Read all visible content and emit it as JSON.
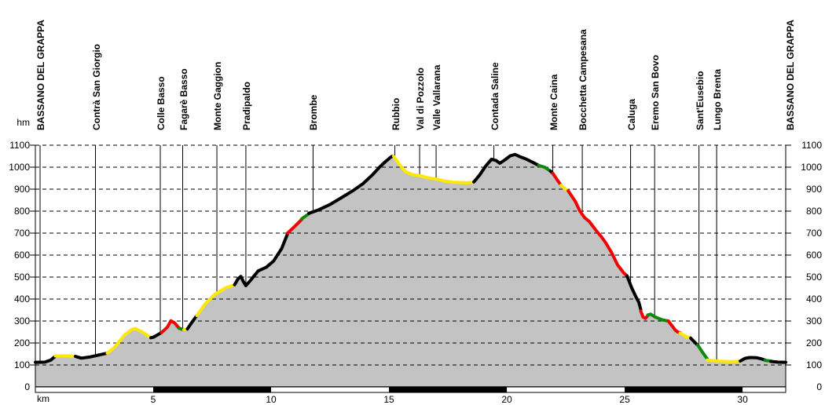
{
  "chart_data": {
    "type": "area",
    "title": "",
    "xlabel": "km",
    "ylabel": "hm",
    "x_ticks": [
      5,
      10,
      15,
      20,
      25,
      30
    ],
    "y_ticks": [
      0,
      100,
      200,
      300,
      400,
      500,
      600,
      700,
      800,
      900,
      1000,
      1100
    ],
    "xlim": [
      0,
      31.83
    ],
    "ylim": [
      0,
      1100
    ],
    "grid": "horizontal-dashed",
    "legend": "none",
    "colors": {
      "background": "#ffffff",
      "fill": "#c3c3c3",
      "outline": "#000000",
      "gradient_yellow": "#ffe800",
      "gradient_red": "#f40000",
      "gradient_green": "#0a8a0a"
    },
    "profile_segments": [
      {
        "color": "black",
        "points": [
          [
            0,
            112
          ],
          [
            0.4,
            113
          ],
          [
            0.65,
            122
          ],
          [
            0.85,
            140
          ]
        ]
      },
      {
        "color": "yellow",
        "points": [
          [
            0.85,
            141
          ],
          [
            1.3,
            142
          ],
          [
            1.7,
            139
          ]
        ]
      },
      {
        "color": "black",
        "points": [
          [
            1.7,
            139
          ],
          [
            1.95,
            131
          ],
          [
            2.3,
            136
          ],
          [
            3.05,
            154
          ]
        ]
      },
      {
        "color": "yellow",
        "points": [
          [
            3.05,
            154
          ],
          [
            3.35,
            180
          ],
          [
            3.8,
            238
          ],
          [
            4.1,
            262
          ],
          [
            4.25,
            266
          ],
          [
            4.5,
            252
          ],
          [
            4.9,
            224
          ]
        ]
      },
      {
        "color": "black",
        "points": [
          [
            4.9,
            224
          ],
          [
            5.0,
            226
          ],
          [
            5.35,
            247
          ]
        ]
      },
      {
        "color": "red",
        "points": [
          [
            5.35,
            247
          ],
          [
            5.6,
            272
          ],
          [
            5.75,
            301
          ],
          [
            5.9,
            292
          ],
          [
            6.1,
            267
          ]
        ]
      },
      {
        "color": "green",
        "points": [
          [
            6.1,
            267
          ],
          [
            6.3,
            260
          ]
        ]
      },
      {
        "color": "yellow",
        "points": [
          [
            6.3,
            260
          ],
          [
            6.45,
            264
          ]
        ]
      },
      {
        "color": "black",
        "points": [
          [
            6.45,
            264
          ],
          [
            6.6,
            288
          ],
          [
            6.85,
            325
          ]
        ]
      },
      {
        "color": "yellow",
        "points": [
          [
            6.85,
            325
          ],
          [
            7.2,
            378
          ],
          [
            7.6,
            420
          ],
          [
            8.1,
            452
          ],
          [
            8.45,
            465
          ]
        ]
      },
      {
        "color": "black",
        "points": [
          [
            8.45,
            465
          ],
          [
            8.6,
            492
          ],
          [
            8.72,
            503
          ],
          [
            8.82,
            480
          ],
          [
            8.93,
            461
          ],
          [
            9.15,
            488
          ],
          [
            9.45,
            528
          ],
          [
            9.8,
            545
          ],
          [
            10.1,
            572
          ],
          [
            10.45,
            630
          ],
          [
            10.7,
            697
          ]
        ]
      },
      {
        "color": "red",
        "points": [
          [
            10.7,
            700
          ],
          [
            11.0,
            730
          ],
          [
            11.3,
            762
          ]
        ]
      },
      {
        "color": "green",
        "points": [
          [
            11.3,
            765
          ],
          [
            11.6,
            788
          ]
        ]
      },
      {
        "color": "black",
        "points": [
          [
            11.6,
            790
          ],
          [
            12.0,
            805
          ],
          [
            12.5,
            830
          ],
          [
            13.0,
            862
          ],
          [
            13.5,
            895
          ],
          [
            13.9,
            925
          ],
          [
            14.3,
            965
          ],
          [
            14.6,
            1000
          ],
          [
            14.85,
            1025
          ],
          [
            15.1,
            1048
          ],
          [
            15.2,
            1050
          ]
        ]
      },
      {
        "color": "yellow",
        "points": [
          [
            15.2,
            1050
          ],
          [
            15.45,
            1012
          ],
          [
            15.7,
            980
          ],
          [
            16.0,
            966
          ],
          [
            16.3,
            962
          ],
          [
            16.6,
            953
          ],
          [
            17.0,
            946
          ],
          [
            17.4,
            936
          ],
          [
            17.8,
            931
          ],
          [
            18.3,
            929
          ],
          [
            18.6,
            932
          ]
        ]
      },
      {
        "color": "black",
        "points": [
          [
            18.6,
            933
          ],
          [
            18.85,
            965
          ],
          [
            19.1,
            1005
          ],
          [
            19.35,
            1036
          ],
          [
            19.55,
            1030
          ],
          [
            19.7,
            1018
          ],
          [
            19.9,
            1032
          ],
          [
            20.15,
            1052
          ],
          [
            20.35,
            1058
          ],
          [
            20.55,
            1048
          ],
          [
            20.8,
            1038
          ],
          [
            21.1,
            1022
          ],
          [
            21.35,
            1008
          ]
        ]
      },
      {
        "color": "green",
        "points": [
          [
            21.35,
            1008
          ],
          [
            21.6,
            1000
          ],
          [
            21.85,
            982
          ]
        ]
      },
      {
        "color": "black",
        "points": [
          [
            21.85,
            982
          ],
          [
            21.95,
            972
          ]
        ]
      },
      {
        "color": "red",
        "points": [
          [
            21.95,
            972
          ],
          [
            22.15,
            940
          ],
          [
            22.3,
            918
          ]
        ]
      },
      {
        "color": "yellow",
        "points": [
          [
            22.3,
            918
          ],
          [
            22.5,
            900
          ],
          [
            22.6,
            893
          ]
        ]
      },
      {
        "color": "red",
        "points": [
          [
            22.6,
            893
          ],
          [
            22.9,
            845
          ],
          [
            23.1,
            800
          ],
          [
            23.3,
            770
          ],
          [
            23.5,
            752
          ],
          [
            23.8,
            710
          ],
          [
            24.0,
            685
          ],
          [
            24.2,
            655
          ],
          [
            24.45,
            610
          ],
          [
            24.7,
            555
          ],
          [
            24.95,
            520
          ],
          [
            25.1,
            505
          ]
        ]
      },
      {
        "color": "black",
        "points": [
          [
            25.1,
            505
          ],
          [
            25.3,
            450
          ],
          [
            25.5,
            405
          ],
          [
            25.6,
            385
          ],
          [
            25.68,
            352
          ]
        ]
      },
      {
        "color": "red",
        "points": [
          [
            25.68,
            345
          ],
          [
            25.78,
            318
          ],
          [
            25.88,
            312
          ],
          [
            25.98,
            325
          ]
        ]
      },
      {
        "color": "green",
        "points": [
          [
            25.98,
            328
          ],
          [
            26.1,
            331
          ],
          [
            26.3,
            318
          ],
          [
            26.6,
            305
          ],
          [
            26.85,
            300
          ]
        ]
      },
      {
        "color": "red",
        "points": [
          [
            26.85,
            300
          ],
          [
            27.05,
            272
          ],
          [
            27.15,
            258
          ],
          [
            27.25,
            250
          ],
          [
            27.35,
            247
          ]
        ]
      },
      {
        "color": "yellow",
        "points": [
          [
            27.35,
            245
          ],
          [
            27.6,
            230
          ],
          [
            27.8,
            222
          ]
        ]
      },
      {
        "color": "black",
        "points": [
          [
            27.8,
            222
          ],
          [
            28.0,
            200
          ],
          [
            28.1,
            190
          ]
        ]
      },
      {
        "color": "green",
        "points": [
          [
            28.1,
            190
          ],
          [
            28.3,
            158
          ],
          [
            28.5,
            128
          ]
        ]
      },
      {
        "color": "yellow",
        "points": [
          [
            28.5,
            122
          ],
          [
            29.0,
            117
          ],
          [
            29.5,
            115
          ],
          [
            29.9,
            116
          ]
        ]
      },
      {
        "color": "black",
        "points": [
          [
            29.9,
            118
          ],
          [
            30.1,
            130
          ],
          [
            30.3,
            134
          ],
          [
            30.6,
            133
          ],
          [
            30.8,
            128
          ],
          [
            30.95,
            122
          ]
        ]
      },
      {
        "color": "green",
        "points": [
          [
            30.95,
            121
          ],
          [
            31.2,
            118
          ]
        ]
      },
      {
        "color": "black",
        "points": [
          [
            31.2,
            116
          ],
          [
            31.5,
            113
          ],
          [
            31.83,
            112
          ]
        ]
      }
    ],
    "waypoints": [
      {
        "name": "BASSANO DEL GRAPPA",
        "km": 0.2,
        "line": true
      },
      {
        "name": "Contrà San Giorgio",
        "km": 2.55,
        "line": true
      },
      {
        "name": "Colle Basso",
        "km": 5.3,
        "line": true
      },
      {
        "name": "Fagarè Basso",
        "km": 6.25,
        "line": true
      },
      {
        "name": "Monte Gaggion",
        "km": 7.7,
        "line": true
      },
      {
        "name": "Pradipaldo",
        "km": 8.93,
        "line": true
      },
      {
        "name": "Brombe",
        "km": 11.78,
        "line": true
      },
      {
        "name": "Rubbio",
        "km": 15.25,
        "line": true
      },
      {
        "name": "Val di Pozzolo",
        "km": 16.3,
        "line": true
      },
      {
        "name": "Valle Vallarana",
        "km": 17.0,
        "line": true
      },
      {
        "name": "Contada Saline",
        "km": 19.45,
        "line": true
      },
      {
        "name": "Monte Caina",
        "km": 21.95,
        "line": true
      },
      {
        "name": "Bocchetta Campesana",
        "km": 23.2,
        "line": true
      },
      {
        "name": "Caluga",
        "km": 25.25,
        "line": true
      },
      {
        "name": "Eremo San Bovo",
        "km": 26.27,
        "line": true
      },
      {
        "name": "Sant'Eusebio",
        "km": 28.15,
        "line": true
      },
      {
        "name": "Lungo Brenta",
        "km": 28.9,
        "line": true
      },
      {
        "name": "BASSANO DEL GRAPPA",
        "km": 32.0,
        "line": false
      }
    ],
    "distance_scalebar_black_km": [
      [
        5,
        10
      ],
      [
        15,
        20
      ],
      [
        25,
        30
      ]
    ]
  },
  "labels": {
    "y_axis_unit": "hm",
    "x_axis_unit": "km"
  }
}
